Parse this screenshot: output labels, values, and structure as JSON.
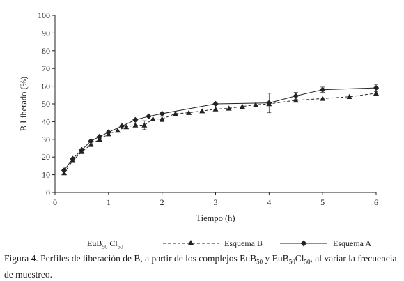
{
  "chart_data": {
    "type": "line",
    "ylabel": "B Liberado (%)",
    "xlabel": "Tiempo (h)",
    "xlim": [
      0,
      6
    ],
    "ylim": [
      0,
      100
    ],
    "xticks": [
      "0",
      "1",
      "2",
      "3",
      "4",
      "5",
      "6"
    ],
    "yticks": [
      "0",
      "10",
      "20",
      "30",
      "40",
      "50",
      "60",
      "70",
      "80",
      "90",
      "100"
    ],
    "grid": false,
    "legend_position": "bottom",
    "series": [
      {
        "name": "Esquema B",
        "style": "dashed",
        "marker": "triangle",
        "x": [
          0.17,
          0.33,
          0.5,
          0.67,
          0.83,
          1.0,
          1.17,
          1.33,
          1.5,
          1.67,
          1.83,
          2.0,
          2.25,
          2.5,
          2.75,
          3.0,
          3.25,
          3.5,
          3.75,
          4.0,
          4.5,
          5.0,
          5.5,
          6.0
        ],
        "y": [
          11,
          18,
          23,
          27,
          30,
          33,
          35,
          37,
          38,
          38,
          41.5,
          41.5,
          44.5,
          45,
          46,
          47,
          47.5,
          48.5,
          49.5,
          50,
          52,
          53,
          54,
          56
        ],
        "errors": [
          0,
          0,
          0,
          0,
          0,
          0,
          0,
          0,
          0,
          2.5,
          0,
          1.5,
          0,
          0,
          0,
          0,
          0,
          0,
          0,
          0,
          0,
          0,
          0,
          1
        ]
      },
      {
        "name": "Esquema A",
        "style": "solid",
        "marker": "diamond",
        "x": [
          0.17,
          0.33,
          0.5,
          0.67,
          0.83,
          1.0,
          1.25,
          1.5,
          1.75,
          2.0,
          3.0,
          4.0,
          4.5,
          5.0,
          6.0
        ],
        "y": [
          12.5,
          19,
          24,
          29,
          31.5,
          34,
          37.5,
          41,
          43,
          44.5,
          50,
          50.5,
          54.5,
          58,
          59
        ],
        "errors": [
          0,
          0,
          0,
          0,
          0,
          0,
          0,
          0,
          0,
          0,
          0,
          5.5,
          2,
          1.5,
          2
        ]
      }
    ]
  },
  "legend": {
    "complex": "EuB",
    "complex_sub1": "50",
    "complex_mid": " Cl",
    "complex_sub2": "50",
    "series_b": "Esquema B",
    "series_a": "Esquema A"
  },
  "caption": {
    "part1": "Figura 4. Perfiles de liberación de B, a partir de los complejos EuB",
    "sub1": "50",
    "part2": " y EuB",
    "sub2": "50",
    "part3": "Cl",
    "sub3": "50",
    "part4": ", al variar la frecuencia",
    "line2": "de muestreo."
  }
}
